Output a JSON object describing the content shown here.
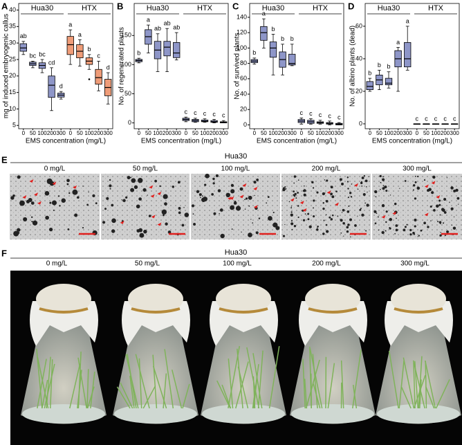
{
  "chart_data": [
    {
      "panel": "A",
      "type": "box",
      "ylabel": "mg of induced embryogenic callus",
      "xlabel": "EMS concentration (mg/L)",
      "categories": [
        "0",
        "50",
        "100",
        "200",
        "300"
      ],
      "ylim": [
        4,
        42
      ],
      "yticks": [
        5,
        10,
        15,
        20,
        25,
        30,
        35,
        40
      ],
      "series": [
        {
          "name": "Hua30",
          "color": "#8e96c8",
          "min": [
            26.5,
            22.5,
            21,
            9.5,
            13
          ],
          "q1": [
            27.5,
            23.2,
            22.3,
            13.5,
            13.6
          ],
          "median": [
            28.5,
            23.7,
            23.2,
            17.2,
            14.2
          ],
          "q3": [
            29.8,
            24.2,
            24,
            20,
            14.8
          ],
          "max": [
            30.5,
            24.5,
            25,
            22.5,
            15.3
          ],
          "outliers": [
            null,
            null,
            null,
            null,
            null
          ],
          "letters": [
            "ab",
            "bc",
            "bc",
            "cd",
            "d"
          ]
        },
        {
          "name": "HTX",
          "color": "#ef9c78",
          "min": [
            23.5,
            23,
            22,
            15.5,
            11.5
          ],
          "q1": [
            26.5,
            25.5,
            23.5,
            17.5,
            14
          ],
          "median": [
            29.5,
            27.5,
            24.5,
            19.5,
            16.5
          ],
          "q3": [
            32,
            29.5,
            25.5,
            22,
            19
          ],
          "max": [
            34,
            31,
            26.5,
            24.5,
            21
          ],
          "outliers": [
            null,
            null,
            19,
            null,
            null
          ],
          "letters": [
            "a",
            "a",
            "b",
            "c",
            "d"
          ]
        }
      ]
    },
    {
      "panel": "B",
      "type": "box",
      "ylabel": "No. of regenerated plants",
      "xlabel": "EMS concentration (mg/L)",
      "categories": [
        "0",
        "50",
        "100",
        "200",
        "300"
      ],
      "ylim": [
        -10,
        205
      ],
      "yticks": [
        0,
        50,
        100,
        150
      ],
      "series": [
        {
          "name": "Hua30",
          "color": "#8e96c8",
          "min": [
            103,
            120,
            88,
            88,
            108
          ],
          "q1": [
            105,
            135,
            110,
            115,
            112
          ],
          "median": [
            107,
            148,
            125,
            130,
            120
          ],
          "q3": [
            109,
            160,
            140,
            140,
            138
          ],
          "max": [
            111,
            168,
            153,
            162,
            155
          ],
          "outliers": [
            null,
            null,
            null,
            null,
            null
          ],
          "letters": [
            "b",
            "a",
            "ab",
            "ab",
            "ab"
          ]
        },
        {
          "name": "HTX",
          "color": "#8e96c8",
          "min": [
            2,
            1,
            1,
            0,
            0
          ],
          "q1": [
            4,
            2,
            2,
            1,
            0
          ],
          "median": [
            6,
            4,
            3,
            2,
            1
          ],
          "q3": [
            8,
            6,
            5,
            4,
            2
          ],
          "max": [
            10,
            8,
            7,
            6,
            4
          ],
          "outliers": [
            null,
            null,
            null,
            null,
            null
          ],
          "letters": [
            "c",
            "c",
            "c",
            "c",
            "c"
          ]
        }
      ]
    },
    {
      "panel": "C",
      "type": "box",
      "ylabel": "No. of survived plants",
      "xlabel": "EMS concentration (mg/L)",
      "categories": [
        "0",
        "50",
        "100",
        "200",
        "300"
      ],
      "ylim": [
        -5,
        158
      ],
      "yticks": [
        0,
        20,
        40,
        60,
        80,
        100,
        120,
        140
      ],
      "series": [
        {
          "name": "Hua30",
          "color": "#8e96c8",
          "min": [
            79,
            100,
            65,
            65,
            77
          ],
          "q1": [
            81,
            110,
            88,
            75,
            78
          ],
          "median": [
            83,
            120,
            100,
            85,
            80
          ],
          "q3": [
            85,
            128,
            108,
            95,
            92
          ],
          "max": [
            87,
            138,
            118,
            105,
            105
          ],
          "outliers": [
            null,
            null,
            null,
            null,
            null
          ],
          "letters": [
            "b",
            "a",
            "b",
            "b",
            "b"
          ]
        },
        {
          "name": "HTX",
          "color": "#8e96c8",
          "min": [
            1,
            1,
            1,
            0,
            0
          ],
          "q1": [
            3,
            2,
            2,
            1,
            0
          ],
          "median": [
            5,
            4,
            3,
            2,
            1
          ],
          "q3": [
            7,
            6,
            4,
            3,
            2
          ],
          "max": [
            9,
            8,
            6,
            5,
            3
          ],
          "outliers": [
            null,
            null,
            null,
            null,
            null
          ],
          "letters": [
            "c",
            "c",
            "c",
            "c",
            "c"
          ]
        }
      ]
    },
    {
      "panel": "D",
      "type": "box",
      "ylabel": "No. of albino plants (dead)",
      "xlabel": "EMS concentration (mg/L)",
      "categories": [
        "0",
        "50",
        "100",
        "200",
        "300"
      ],
      "ylim": [
        -3,
        74
      ],
      "yticks": [
        0,
        20,
        40,
        60
      ],
      "series": [
        {
          "name": "Hua30",
          "color": "#8e96c8",
          "min": [
            20,
            21,
            22,
            20,
            33
          ],
          "q1": [
            21,
            24,
            24,
            35,
            35
          ],
          "median": [
            23,
            27,
            25,
            40,
            40
          ],
          "q3": [
            26,
            30,
            28,
            45,
            50
          ],
          "max": [
            28,
            33,
            32,
            47,
            60
          ],
          "outliers": [
            null,
            null,
            null,
            null,
            null
          ],
          "letters": [
            "b",
            "b",
            "b",
            "a",
            "a"
          ]
        },
        {
          "name": "HTX",
          "color": "#8e96c8",
          "min": [
            0,
            0,
            0,
            0,
            0
          ],
          "q1": [
            0,
            0,
            0,
            0,
            0
          ],
          "median": [
            0,
            0,
            0,
            0,
            0
          ],
          "q3": [
            0,
            0,
            0,
            0,
            0
          ],
          "max": [
            0,
            0,
            0,
            0,
            0
          ],
          "outliers": [
            null,
            null,
            null,
            null,
            null
          ],
          "letters": [
            "c",
            "c",
            "c",
            "c",
            "c"
          ]
        }
      ]
    }
  ],
  "panels": [
    {
      "letter": "E",
      "title": "Hua30",
      "labels": [
        "0 mg/L",
        "50 mg/L",
        "100 mg/L",
        "200 mg/L",
        "300 mg/L"
      ]
    },
    {
      "letter": "F",
      "title": "Hua30",
      "labels": [
        "0 mg/L",
        "50 mg/L",
        "100 mg/L",
        "200 mg/L",
        "300 mg/L"
      ]
    }
  ]
}
